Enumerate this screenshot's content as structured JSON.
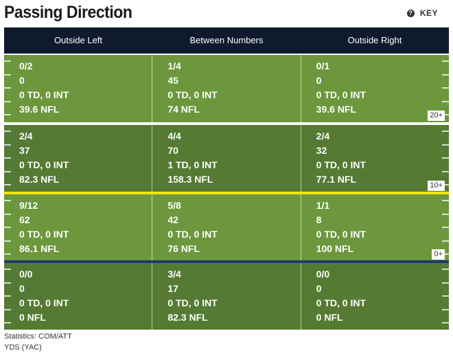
{
  "title": "Passing Direction",
  "key_label": "KEY",
  "columns": [
    "Outside Left",
    "Between Numbers",
    "Outside Right"
  ],
  "zones": [
    {
      "label": "20+",
      "cells": [
        [
          "0/2",
          "0",
          "0 TD, 0 INT",
          "39.6 NFL"
        ],
        [
          "1/4",
          "45",
          "0 TD, 0 INT",
          "74 NFL"
        ],
        [
          "0/1",
          "0",
          "0 TD, 0 INT",
          "39.6 NFL"
        ]
      ]
    },
    {
      "label": "10+",
      "cells": [
        [
          "2/4",
          "37",
          "0 TD, 0 INT",
          "82.3 NFL"
        ],
        [
          "4/4",
          "70",
          "1 TD, 0 INT",
          "158.3 NFL"
        ],
        [
          "2/4",
          "32",
          "0 TD, 0 INT",
          "77.1 NFL"
        ]
      ]
    },
    {
      "label": "0+",
      "cells": [
        [
          "9/12",
          "62",
          "0 TD, 0 INT",
          "86.1 NFL"
        ],
        [
          "5/8",
          "42",
          "0 TD, 0 INT",
          "76 NFL"
        ],
        [
          "1/1",
          "8",
          "0 TD, 0 INT",
          "100 NFL"
        ]
      ]
    },
    {
      "label": "",
      "cells": [
        [
          "0/0",
          "0",
          "0 TD, 0 INT",
          "0 NFL"
        ],
        [
          "3/4",
          "17",
          "0 TD, 0 INT",
          "82.3 NFL"
        ],
        [
          "0/0",
          "0",
          "0 TD, 0 INT",
          "0 NFL"
        ]
      ]
    }
  ],
  "colors": {
    "header_bg": "#0f1b2d",
    "field_light": "#6c973d",
    "field_dark": "#557a33",
    "line_white": "#ffffff",
    "line_yellow": "#f2e600",
    "line_of_scrimmage": "#1f3a6b"
  },
  "footer": {
    "line1": "Statistics: COM/ATT",
    "line2": "YDS (YAC)"
  }
}
